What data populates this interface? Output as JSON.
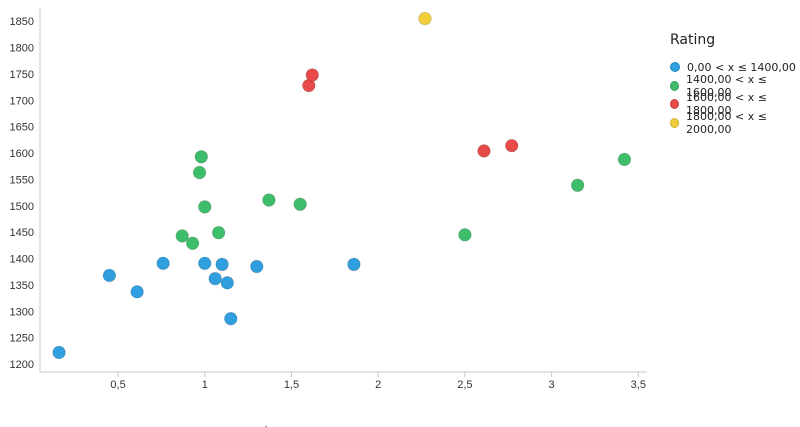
{
  "chart_data": {
    "type": "scatter",
    "title": "",
    "xlabel": "",
    "ylabel": "",
    "xlim": [
      0.05,
      3.55
    ],
    "ylim": [
      1185,
      1875
    ],
    "x_ticks": [
      0.5,
      1,
      1.5,
      2,
      2.5,
      3,
      3.5
    ],
    "x_tick_labels": [
      "0,5",
      "1",
      "1,5",
      "2",
      "2,5",
      "3",
      "3,5"
    ],
    "y_ticks": [
      1200,
      1250,
      1300,
      1350,
      1400,
      1450,
      1500,
      1550,
      1600,
      1650,
      1700,
      1750,
      1800,
      1850
    ],
    "y_tick_labels": [
      "1200",
      "1250",
      "1300",
      "1350",
      "1400",
      "1450",
      "1500",
      "1550",
      "1600",
      "1650",
      "1700",
      "1750",
      "1800",
      "1850"
    ],
    "grid": false,
    "legend": {
      "title": "Rating",
      "position": "right"
    },
    "series": [
      {
        "name": "0,00 < x ≤ 1400,00",
        "color": "#2f9fe0",
        "points": [
          [
            0.16,
            1222
          ],
          [
            0.45,
            1368
          ],
          [
            0.61,
            1337
          ],
          [
            0.76,
            1391
          ],
          [
            1.0,
            1391
          ],
          [
            1.06,
            1362
          ],
          [
            1.1,
            1389
          ],
          [
            1.13,
            1354
          ],
          [
            1.15,
            1286
          ],
          [
            1.3,
            1385
          ],
          [
            1.86,
            1389
          ]
        ]
      },
      {
        "name": "1400,00 < x ≤ 1600,00",
        "color": "#3ebd6b",
        "points": [
          [
            0.87,
            1443
          ],
          [
            0.93,
            1429
          ],
          [
            0.97,
            1563
          ],
          [
            0.98,
            1593
          ],
          [
            1.0,
            1498
          ],
          [
            1.08,
            1449
          ],
          [
            1.37,
            1511
          ],
          [
            1.55,
            1503
          ],
          [
            2.5,
            1445
          ],
          [
            3.15,
            1539
          ],
          [
            3.42,
            1588
          ]
        ]
      },
      {
        "name": "1600,00 < x ≤ 1800,00",
        "color": "#e84a4a",
        "points": [
          [
            1.6,
            1728
          ],
          [
            1.62,
            1748
          ],
          [
            2.61,
            1604
          ],
          [
            2.77,
            1614
          ]
        ]
      },
      {
        "name": "1800,00 < x ≤ 2000,00",
        "color": "#f2cf3a",
        "points": [
          [
            2.27,
            1855
          ]
        ]
      }
    ]
  },
  "footer": {
    "mark": "."
  }
}
